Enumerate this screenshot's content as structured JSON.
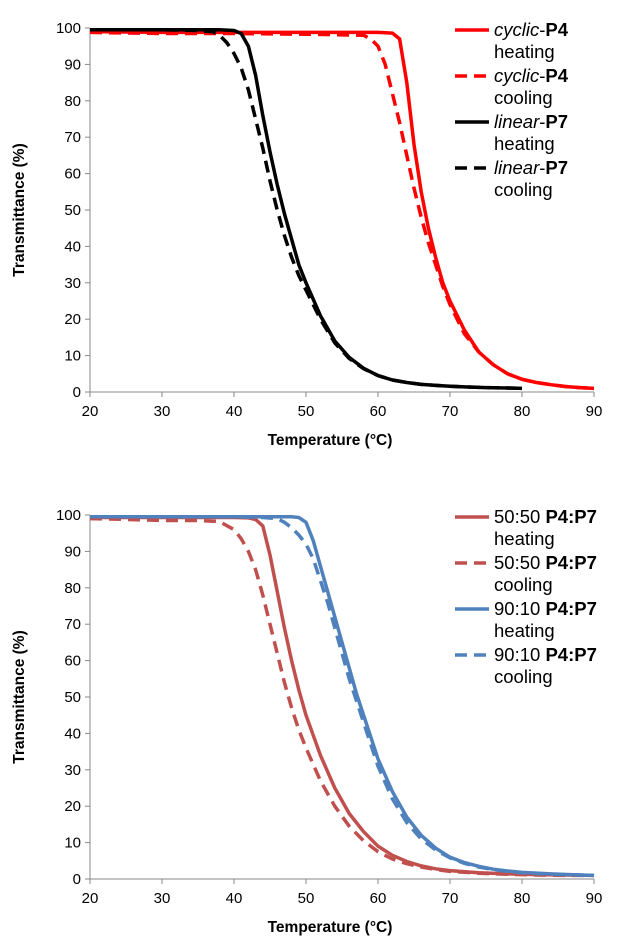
{
  "chart_data": [
    {
      "type": "line",
      "xlabel": "Temperature (°C)",
      "ylabel": "Transmittance (%)",
      "xlim": [
        20,
        90
      ],
      "ylim": [
        0,
        100
      ],
      "xticks": [
        "20",
        "30",
        "40",
        "50",
        "60",
        "70",
        "80",
        "90"
      ],
      "yticks": [
        "0",
        "10",
        "20",
        "30",
        "40",
        "50",
        "60",
        "70",
        "80",
        "90",
        "100"
      ],
      "grid": false,
      "legend_position": "right",
      "series": [
        {
          "legend_parts": [
            {
              "text": "cyclic",
              "style": "italic"
            },
            {
              "text": "-",
              "style": "normal"
            },
            {
              "text": "P4",
              "style": "bold"
            }
          ],
          "legend_line2": "heating",
          "color": "#ff0000",
          "dash": "solid",
          "x": [
            20,
            30,
            40,
            50,
            60,
            62,
            63,
            64,
            65,
            66,
            67,
            68,
            69,
            70,
            72,
            74,
            76,
            78,
            80,
            82,
            84,
            86,
            88,
            90
          ],
          "y": [
            99,
            98.8,
            98.8,
            98.8,
            98.8,
            98.6,
            97,
            85,
            68,
            55,
            45,
            37,
            30,
            25,
            17,
            11,
            7.5,
            5,
            3.5,
            2.6,
            2,
            1.5,
            1.2,
            1
          ]
        },
        {
          "legend_parts": [
            {
              "text": "cyclic",
              "style": "italic"
            },
            {
              "text": "-",
              "style": "normal"
            },
            {
              "text": "P4",
              "style": "bold"
            }
          ],
          "legend_line2": "cooling",
          "color": "#ff0000",
          "dash": "dashed",
          "x": [
            20,
            30,
            40,
            50,
            58,
            59,
            60,
            61,
            62,
            63,
            64,
            65,
            66,
            67,
            68,
            69,
            70,
            72,
            74,
            76,
            78,
            80,
            82,
            84,
            86,
            88,
            90
          ],
          "y": [
            98.8,
            98.5,
            98.5,
            98.3,
            98,
            97,
            95,
            90,
            82,
            74,
            65,
            56,
            48,
            41,
            35,
            29,
            24,
            16,
            11,
            7.5,
            5,
            3.5,
            2.6,
            2,
            1.5,
            1.2,
            1
          ]
        },
        {
          "legend_parts": [
            {
              "text": "linear",
              "style": "italic"
            },
            {
              "text": "-",
              "style": "normal"
            },
            {
              "text": "P7",
              "style": "bold"
            }
          ],
          "legend_line2": "heating",
          "color": "#000000",
          "dash": "solid",
          "x": [
            20,
            30,
            38,
            40,
            41,
            42,
            43,
            44,
            45,
            46,
            47,
            48,
            49,
            50,
            52,
            54,
            56,
            58,
            60,
            62,
            64,
            66,
            68,
            70,
            72,
            75,
            78,
            80
          ],
          "y": [
            99.5,
            99.5,
            99.5,
            99.3,
            98.5,
            95,
            87,
            76,
            66,
            57,
            49,
            42,
            35,
            30,
            21,
            14,
            9.5,
            6.5,
            4.5,
            3.3,
            2.6,
            2.1,
            1.8,
            1.6,
            1.4,
            1.2,
            1.1,
            1
          ]
        },
        {
          "legend_parts": [
            {
              "text": "linear",
              "style": "italic"
            },
            {
              "text": "-",
              "style": "normal"
            },
            {
              "text": "P7",
              "style": "bold"
            }
          ],
          "legend_line2": "cooling",
          "color": "#000000",
          "dash": "dashed",
          "x": [
            20,
            30,
            35,
            37,
            38,
            39,
            40,
            41,
            42,
            43,
            44,
            45,
            46,
            47,
            48,
            49,
            50,
            52,
            54,
            56,
            58,
            60,
            62,
            64,
            66,
            68,
            70,
            72,
            75,
            78,
            80
          ],
          "y": [
            99.5,
            99.5,
            99.3,
            99,
            98,
            96,
            93,
            89,
            83,
            75,
            67,
            58,
            50,
            43,
            37,
            32,
            28,
            20,
            13.5,
            9.2,
            6.4,
            4.5,
            3.3,
            2.6,
            2.1,
            1.8,
            1.6,
            1.4,
            1.2,
            1.1,
            1
          ]
        }
      ]
    },
    {
      "type": "line",
      "xlabel": "Temperature (°C)",
      "ylabel": "Transmittance (%)",
      "xlim": [
        20,
        90
      ],
      "ylim": [
        0,
        100
      ],
      "xticks": [
        "20",
        "30",
        "40",
        "50",
        "60",
        "70",
        "80",
        "90"
      ],
      "yticks": [
        "0",
        "10",
        "20",
        "30",
        "40",
        "50",
        "60",
        "70",
        "80",
        "90",
        "100"
      ],
      "grid": false,
      "legend_position": "right",
      "series": [
        {
          "legend_parts": [
            {
              "text": "50:50 ",
              "style": "normal"
            },
            {
              "text": "P4:P7",
              "style": "bold"
            }
          ],
          "legend_line2": "heating",
          "color": "#c0504d",
          "dash": "solid",
          "x": [
            20,
            30,
            40,
            42,
            43,
            44,
            45,
            46,
            47,
            48,
            49,
            50,
            52,
            54,
            56,
            58,
            60,
            62,
            64,
            66,
            68,
            70,
            74,
            78,
            82,
            86,
            90
          ],
          "y": [
            99.3,
            99.3,
            99.3,
            99.2,
            98.8,
            97,
            89,
            79,
            69,
            60,
            52,
            45,
            34,
            25,
            18,
            13,
            9,
            6.5,
            4.8,
            3.6,
            2.8,
            2.3,
            1.7,
            1.4,
            1.2,
            1.1,
            1
          ]
        },
        {
          "legend_parts": [
            {
              "text": "50:50 ",
              "style": "normal"
            },
            {
              "text": "P4:P7",
              "style": "bold"
            }
          ],
          "legend_line2": "cooling",
          "color": "#c0504d",
          "dash": "dashed",
          "x": [
            20,
            25,
            30,
            35,
            38,
            40,
            41,
            42,
            43,
            44,
            45,
            46,
            47,
            48,
            49,
            50,
            52,
            54,
            56,
            58,
            60,
            62,
            64,
            66,
            68,
            70,
            74,
            78,
            82,
            86,
            90
          ],
          "y": [
            99,
            98.8,
            98.5,
            98.5,
            98.2,
            96,
            93.5,
            90,
            85,
            78,
            70,
            62,
            54,
            47,
            41,
            36,
            27,
            20,
            14.5,
            10.5,
            7.5,
            5.5,
            4.2,
            3.3,
            2.6,
            2.1,
            1.6,
            1.3,
            1.1,
            1,
            1
          ]
        },
        {
          "legend_parts": [
            {
              "text": "90:10 ",
              "style": "normal"
            },
            {
              "text": "P4:P7",
              "style": "bold"
            }
          ],
          "legend_line2": "heating",
          "color": "#4f81bd",
          "dash": "solid",
          "x": [
            20,
            30,
            40,
            48,
            49,
            50,
            51,
            52,
            53,
            54,
            55,
            56,
            57,
            58,
            59,
            60,
            62,
            64,
            66,
            68,
            70,
            72,
            74,
            76,
            78,
            80,
            84,
            88,
            90
          ],
          "y": [
            99.5,
            99.5,
            99.5,
            99.5,
            99.3,
            98,
            93,
            86,
            79,
            72,
            65,
            58,
            51,
            45,
            39,
            33,
            24,
            17,
            12,
            8.5,
            6,
            4.5,
            3.5,
            2.7,
            2.2,
            1.8,
            1.4,
            1.1,
            1
          ]
        },
        {
          "legend_parts": [
            {
              "text": "90:10 ",
              "style": "normal"
            },
            {
              "text": "P4:P7",
              "style": "bold"
            }
          ],
          "legend_line2": "cooling",
          "color": "#4f81bd",
          "dash": "dashed",
          "x": [
            20,
            30,
            40,
            44,
            46,
            47,
            48,
            49,
            50,
            51,
            52,
            53,
            54,
            55,
            56,
            57,
            58,
            59,
            60,
            62,
            64,
            66,
            68,
            70,
            72,
            74,
            76,
            78,
            80,
            84,
            88,
            90
          ],
          "y": [
            99.5,
            99.5,
            99.5,
            99.3,
            99,
            98,
            96.5,
            94.5,
            92,
            88,
            82,
            76,
            69,
            62,
            55,
            49,
            43,
            37,
            31,
            22,
            15.5,
            11,
            8,
            5.8,
            4.3,
            3.3,
            2.6,
            2.1,
            1.7,
            1.3,
            1.1,
            1
          ]
        }
      ]
    }
  ]
}
